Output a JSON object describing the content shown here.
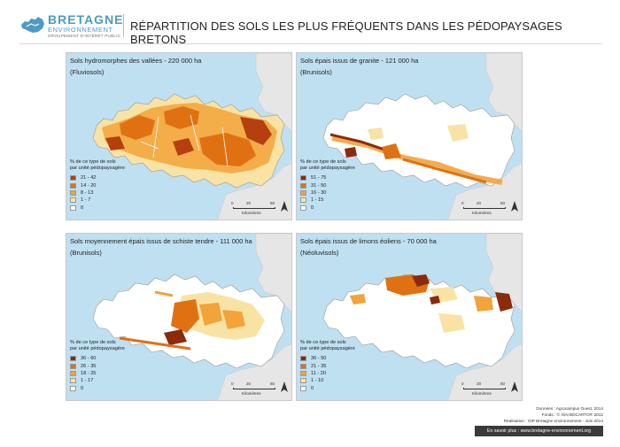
{
  "header": {
    "logo": {
      "name": "BRETAGNE",
      "line2": "ENVIRONNEMENT",
      "line3": "GROUPEMENT D'INTÉRÊT PUBLIC"
    },
    "title": "RÉPARTITION DES SOLS LES PLUS FRÉQUENTS DANS LES PÉDOPAYSAGES BRETONS"
  },
  "colors": {
    "sea": "#bfe0f1",
    "land": "#ffffff",
    "neighbour_land": "#e6e6e6",
    "boundary": "#bdbdbd"
  },
  "panels": [
    {
      "title": "Sols hydromorphes des vallées - 220 000 ha",
      "subtitle": "(Fluviosols)",
      "legend_title_1": "% de ce type de sols",
      "legend_title_2": "par unité pédopaysagère",
      "classes": [
        {
          "label": "21 - 42",
          "color": "#b53f0e"
        },
        {
          "label": "14 - 20",
          "color": "#e07113"
        },
        {
          "label": "8 - 13",
          "color": "#f2a33a"
        },
        {
          "label": "1 - 7",
          "color": "#f9e3a4"
        },
        {
          "label": "0",
          "color": "#ffffff"
        }
      ]
    },
    {
      "title": "Sols épais issus de granite - 121 000 ha",
      "subtitle": "(Brunisols)",
      "legend_title_1": "% de ce type de sols",
      "legend_title_2": "par unité pédopaysagère",
      "classes": [
        {
          "label": "51 - 75",
          "color": "#8c2a0c"
        },
        {
          "label": "31 - 50",
          "color": "#e07113"
        },
        {
          "label": "16 - 30",
          "color": "#f2a33a"
        },
        {
          "label": "1 - 15",
          "color": "#f9e3a4"
        },
        {
          "label": "0",
          "color": "#ffffff"
        }
      ]
    },
    {
      "title": "Sols moyennement épais issus de schiste tendre - 111 000 ha",
      "subtitle": "(Brunisols)",
      "legend_title_1": "% de ce type de sols",
      "legend_title_2": "par unité pédopaysagère",
      "classes": [
        {
          "label": "36 - 60",
          "color": "#8c2a0c"
        },
        {
          "label": "26 - 35",
          "color": "#e07113"
        },
        {
          "label": "18 - 25",
          "color": "#f2a33a"
        },
        {
          "label": "1 - 17",
          "color": "#f9e3a4"
        },
        {
          "label": "0",
          "color": "#ffffff"
        }
      ]
    },
    {
      "title": "Sols épais issus de limons éoliens - 70 000 ha",
      "subtitle": "(Néoluvisols)",
      "legend_title_1": "% de ce type de sols",
      "legend_title_2": "par unité pédopaysagère",
      "classes": [
        {
          "label": "36 - 50",
          "color": "#8c2a0c"
        },
        {
          "label": "21 - 35",
          "color": "#e07113"
        },
        {
          "label": "11 - 20",
          "color": "#f2a33a"
        },
        {
          "label": "1 - 10",
          "color": "#f9e3a4"
        },
        {
          "label": "0",
          "color": "#ffffff"
        }
      ]
    }
  ],
  "scale": {
    "ticks": [
      "0",
      "20",
      "50"
    ],
    "unit": "Kilomètres"
  },
  "credits": {
    "line1": "Données : Agrocampus Ouest, 2014",
    "line2": "Fonds : © IGN BDCARTO® 2012",
    "line3": "Réalisation : GIP Bretagne environnement - Juin 2014",
    "more": "En savoir plus : www.bretagne-environnement.org"
  }
}
